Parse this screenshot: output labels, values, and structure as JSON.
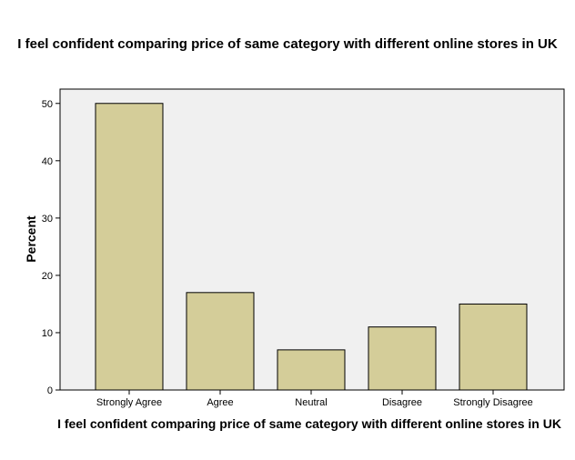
{
  "chart_data": {
    "type": "bar",
    "title": "I feel confident comparing price of same category with different online stores in UK",
    "xlabel": "I feel confident comparing price of same category with different online stores in UK",
    "ylabel": "Percent",
    "categories": [
      "Strongly Agree",
      "Agree",
      "Neutral",
      "Disagree",
      "Strongly Disagree"
    ],
    "values": [
      50,
      17,
      7,
      11,
      15
    ],
    "ylim": [
      0,
      52.5
    ],
    "yticks": [
      0,
      10,
      20,
      30,
      40,
      50
    ],
    "grid": false,
    "colors": {
      "bar_fill": "#d4cd99",
      "bar_stroke": "#000000",
      "plot_bg": "#f0f0f0"
    }
  }
}
